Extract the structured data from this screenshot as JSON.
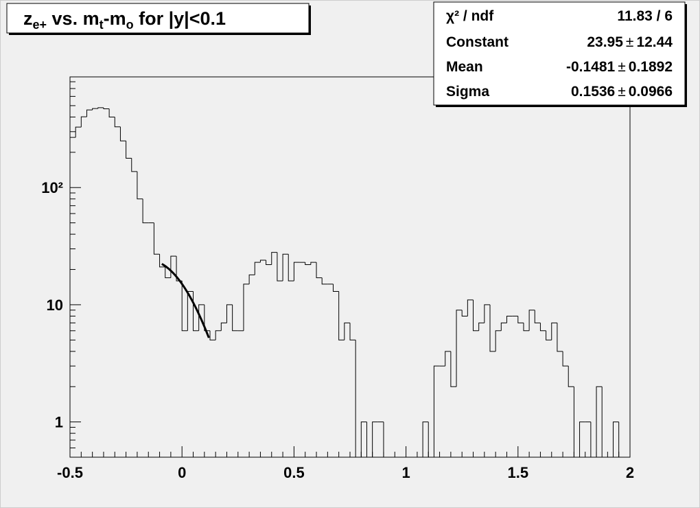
{
  "chart_data": {
    "type": "histogram",
    "title": [
      {
        "text": "z"
      },
      {
        "text": "e+",
        "sub": true
      },
      {
        "text": " vs. m"
      },
      {
        "text": "t",
        "sub": true
      },
      {
        "text": "-m"
      },
      {
        "text": "o",
        "sub": true
      },
      {
        "text": " for |y|<0.1"
      }
    ],
    "bins": [
      -0.5,
      -0.475,
      -0.45,
      -0.425,
      -0.4,
      -0.375,
      -0.35,
      -0.325,
      -0.3,
      -0.275,
      -0.25,
      -0.225,
      -0.2,
      -0.175,
      -0.15,
      -0.125,
      -0.1,
      -0.075,
      -0.05,
      -0.025,
      0,
      0.025,
      0.05,
      0.075,
      0.1,
      0.125,
      0.15,
      0.175,
      0.2,
      0.225,
      0.25,
      0.275,
      0.3,
      0.325,
      0.35,
      0.375,
      0.4,
      0.425,
      0.45,
      0.475,
      0.5,
      0.525,
      0.55,
      0.575,
      0.6,
      0.625,
      0.65,
      0.675,
      0.7,
      0.725,
      0.75,
      0.775,
      0.8,
      0.825,
      0.85,
      0.875,
      0.9,
      0.925,
      0.95,
      0.975,
      1,
      1.025,
      1.05,
      1.075,
      1.1,
      1.125,
      1.15,
      1.175,
      1.2,
      1.225,
      1.25,
      1.275,
      1.3,
      1.325,
      1.35,
      1.375,
      1.4,
      1.425,
      1.45,
      1.475,
      1.5,
      1.525,
      1.55,
      1.575,
      1.6,
      1.625,
      1.65,
      1.675,
      1.7,
      1.725,
      1.75,
      1.775,
      1.8,
      1.825,
      1.85,
      1.875,
      1.9,
      1.925,
      1.95,
      1.975,
      2
    ],
    "values": [
      268,
      328,
      402,
      460,
      472,
      480,
      470,
      400,
      330,
      250,
      178,
      137,
      80,
      50,
      50,
      27,
      21,
      17,
      26,
      16,
      6,
      13,
      6,
      10,
      6,
      5,
      6,
      7,
      10,
      6,
      6,
      15,
      18,
      23,
      24,
      22,
      28,
      16,
      27,
      16,
      23,
      23,
      22,
      23,
      17,
      15,
      15,
      13,
      5,
      7,
      5,
      0,
      1,
      0,
      1,
      1,
      0,
      0,
      0,
      0,
      0,
      0,
      0,
      1,
      0,
      3,
      3,
      4,
      2,
      9,
      8,
      11,
      6,
      7,
      10,
      4,
      6,
      7,
      8,
      8,
      7,
      6,
      9,
      7,
      6,
      5,
      7,
      4,
      3,
      2,
      0,
      1,
      1,
      0,
      2,
      0,
      0,
      1,
      0,
      0
    ],
    "color": "#000000",
    "logy": true,
    "xlim": [
      -0.5,
      2
    ],
    "ylim": [
      0.5,
      880
    ],
    "xticks": [
      -0.5,
      0,
      0.5,
      1,
      1.5,
      2
    ],
    "xminor_ticks": [
      -0.45,
      -0.4,
      -0.35,
      -0.3,
      -0.25,
      -0.2,
      -0.15,
      -0.1,
      -0.05,
      0.05,
      0.1,
      0.15,
      0.2,
      0.25,
      0.3,
      0.35,
      0.4,
      0.45,
      0.55,
      0.6,
      0.65,
      0.7,
      0.75,
      0.8,
      0.85,
      0.9,
      0.95,
      1.05,
      1.1,
      1.15,
      1.2,
      1.25,
      1.3,
      1.35,
      1.4,
      1.45,
      1.55,
      1.6,
      1.65,
      1.7,
      1.75,
      1.8,
      1.85,
      1.9,
      1.95
    ],
    "yticks": [
      1,
      10,
      {
        "value": 100,
        "label": "10²"
      }
    ],
    "yminor_ticks": [
      0.6,
      0.7,
      0.8,
      0.9,
      2,
      3,
      4,
      5,
      6,
      7,
      8,
      9,
      20,
      30,
      40,
      50,
      60,
      70,
      80,
      90,
      200,
      300,
      400,
      500,
      600,
      700,
      800
    ],
    "fit_range": [
      -0.09,
      0.12
    ],
    "stats": {
      "chi2_label": "χ² / ndf",
      "chi2_ndf": "11.83 / 6",
      "plus_minus": "±",
      "parameters": [
        {
          "name": "Constant",
          "value": 23.95,
          "error": 12.44
        },
        {
          "name": "Mean",
          "value": -0.1481,
          "error": 0.1892
        },
        {
          "name": "Sigma",
          "value": 0.1536,
          "error": 0.0966
        }
      ]
    }
  }
}
